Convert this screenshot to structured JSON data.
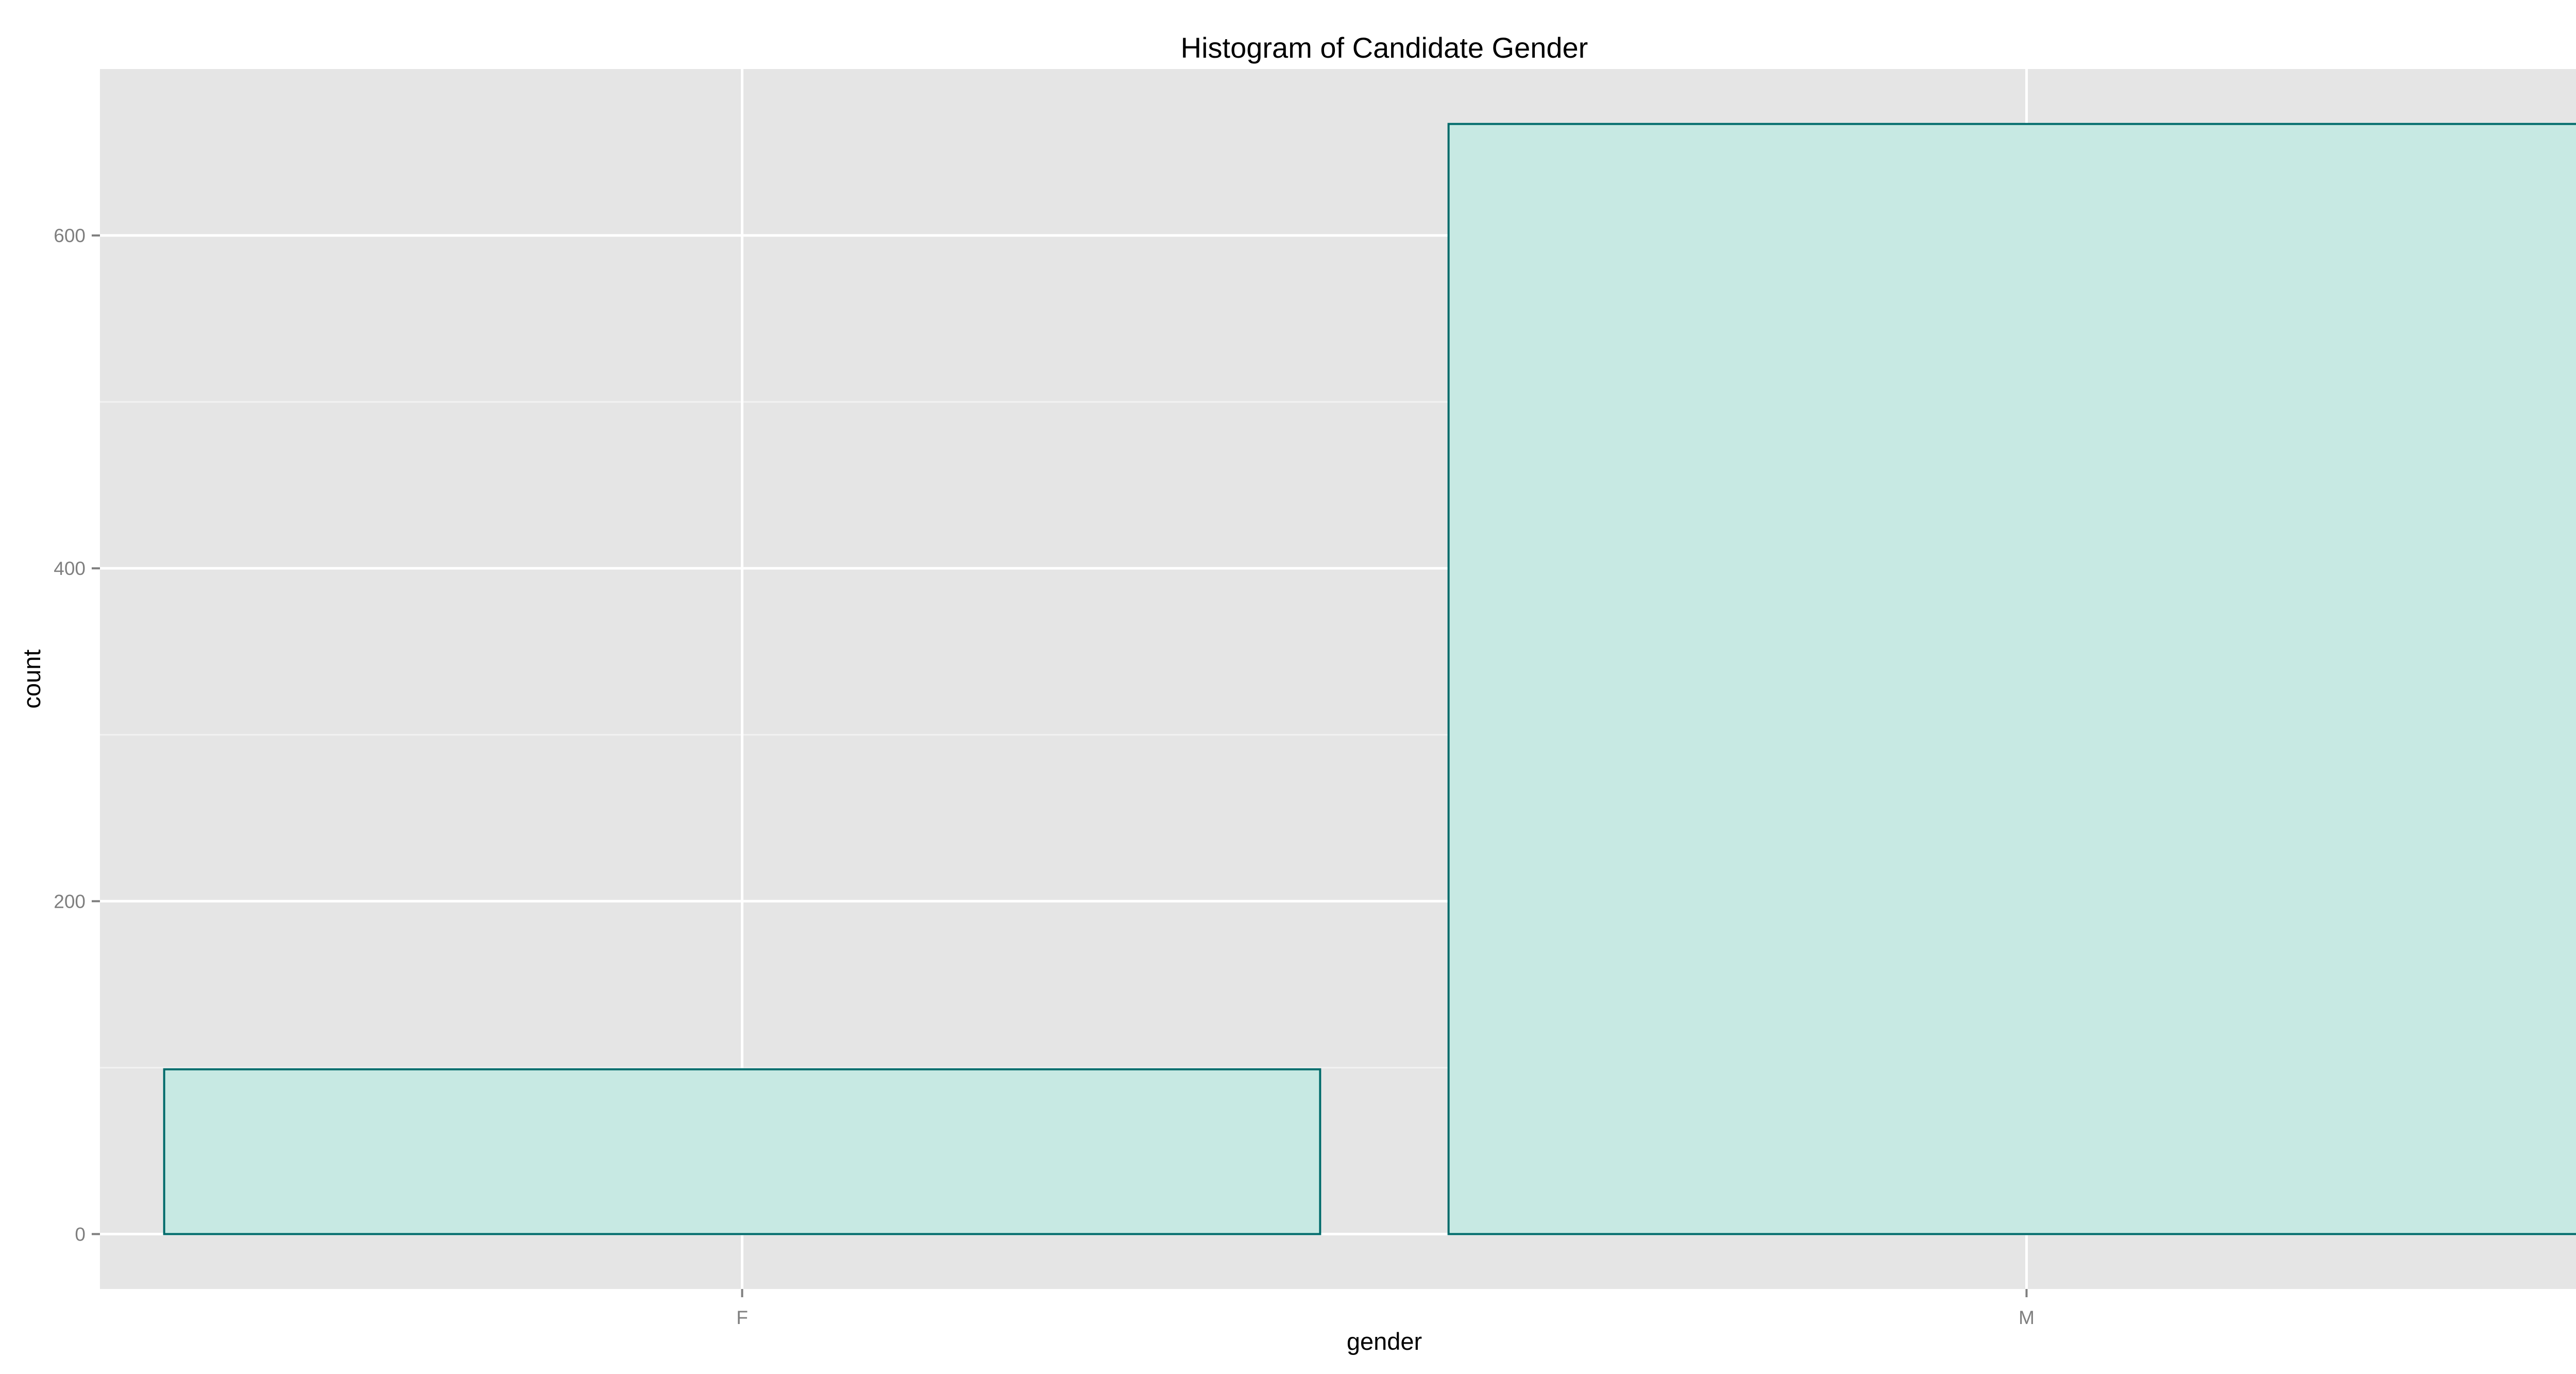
{
  "chart_data": {
    "type": "bar",
    "title": "Histogram of Candidate Gender",
    "xlabel": "gender",
    "ylabel": "count",
    "categories": [
      "F",
      "M"
    ],
    "values": [
      99,
      667
    ],
    "ylim": [
      -33,
      700
    ],
    "yticks": [
      0,
      200,
      400,
      600
    ],
    "grid": true,
    "colors": {
      "panel_background": "#E5E5E5",
      "grid_major": "#FFFFFF",
      "grid_minor": "#F2F2F2",
      "bar_fill": "#C7E9E3",
      "bar_outline": "#006B6B",
      "tick_text": "#7F7F7F",
      "label_text": "#000000"
    }
  }
}
